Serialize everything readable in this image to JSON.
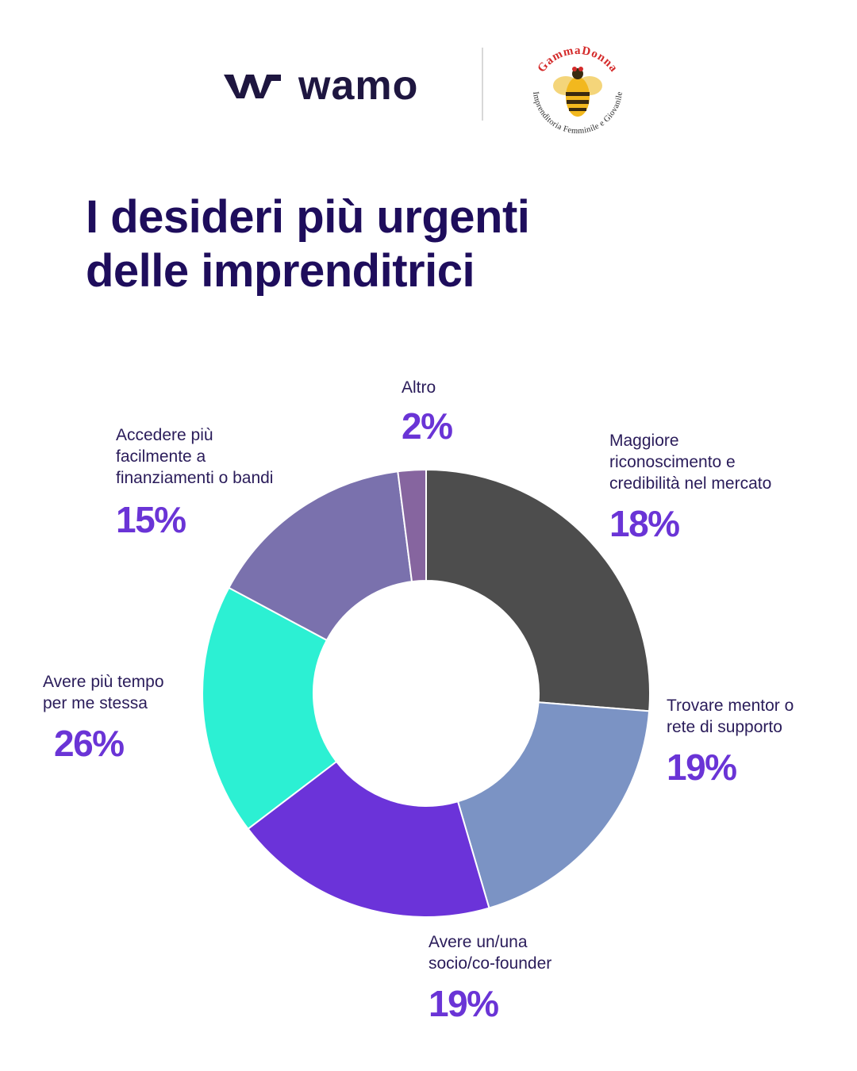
{
  "header": {
    "wamo_brand": "wamo",
    "gamma_top": "GammaDonna",
    "gamma_bottom": "Imprenditoria Femminile e Giovanile"
  },
  "title": {
    "line1": "I desideri più urgenti",
    "line2": "delle imprenditrici"
  },
  "colors": {
    "title": "#1e0d5c",
    "percent": "#6a34d6"
  },
  "chart_data": {
    "type": "pie",
    "donut": true,
    "legend": "none",
    "slices": [
      {
        "label": "Avere più tempo\nper me stessa",
        "value": 26,
        "display": "26%",
        "color": "#4d4d4d"
      },
      {
        "label": "Trovare mentor o\nrete di supporto",
        "value": 19,
        "display": "19%",
        "color": "#7b93c4"
      },
      {
        "label": "Avere un/una\nsocio/co-founder",
        "value": 19,
        "display": "19%",
        "color": "#6b33d9"
      },
      {
        "label": "Maggiore\nriconoscimento e\ncredibilità nel mercato",
        "value": 18,
        "display": "18%",
        "color": "#2cf0d3"
      },
      {
        "label": "Accedere più\nfacilmente a\nfinanziamenti o bandi",
        "value": 15,
        "display": "15%",
        "color": "#7a71ad"
      },
      {
        "label": "Altro",
        "value": 2,
        "display": "2%",
        "color": "#86659f"
      }
    ]
  }
}
